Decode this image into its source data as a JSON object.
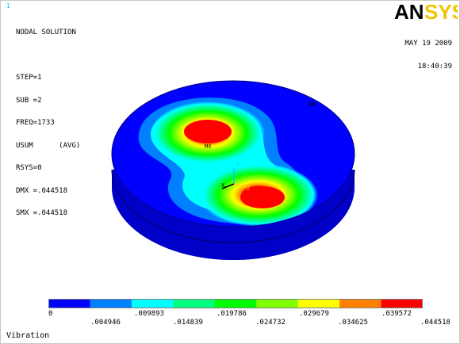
{
  "window_number": "1",
  "info_lines": [
    "NODAL SOLUTION",
    "",
    "STEP=1",
    "SUB =2",
    "FREQ=1733",
    "USUM      (AVG)",
    "RSYS=0",
    "DMX =.044518",
    "SMX =.044518"
  ],
  "logo": {
    "text_a": "AN",
    "text_b": "SYS"
  },
  "date": "MAY 19 2009",
  "time": "18:40:39",
  "markers": {
    "mn": "MN",
    "mx": "MX"
  },
  "triad": {
    "x": "X",
    "y": "Y",
    "z": "Z"
  },
  "legend": {
    "colors": [
      "#0000ff",
      "#0080ff",
      "#00ffff",
      "#00ff80",
      "#00ff00",
      "#80ff00",
      "#ffff00",
      "#ff8000",
      "#ff0000"
    ],
    "upper_labels": [
      "0",
      ".009893",
      ".019786",
      ".029679",
      ".039572"
    ],
    "lower_labels": [
      ".004946",
      ".014839",
      ".024732",
      ".034625",
      ".044518"
    ]
  },
  "title": "Vibration"
}
